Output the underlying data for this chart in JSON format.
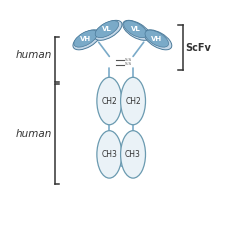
{
  "background_color": "#ffffff",
  "ellipse_fill_dark": "#7aaac8",
  "ellipse_fill_light": "#c5d8e8",
  "ellipse_edge": "#4a7a9a",
  "domain_fill": "#eaf2f7",
  "domain_edge": "#6a9ab0",
  "linker_color": "#7aaac8",
  "text_color": "#333333",
  "label_color": "#333333",
  "ss_color": "#555555",
  "bracket_color": "#333333",
  "human_labels": [
    "human",
    "human"
  ],
  "scfv_label": "ScFv"
}
